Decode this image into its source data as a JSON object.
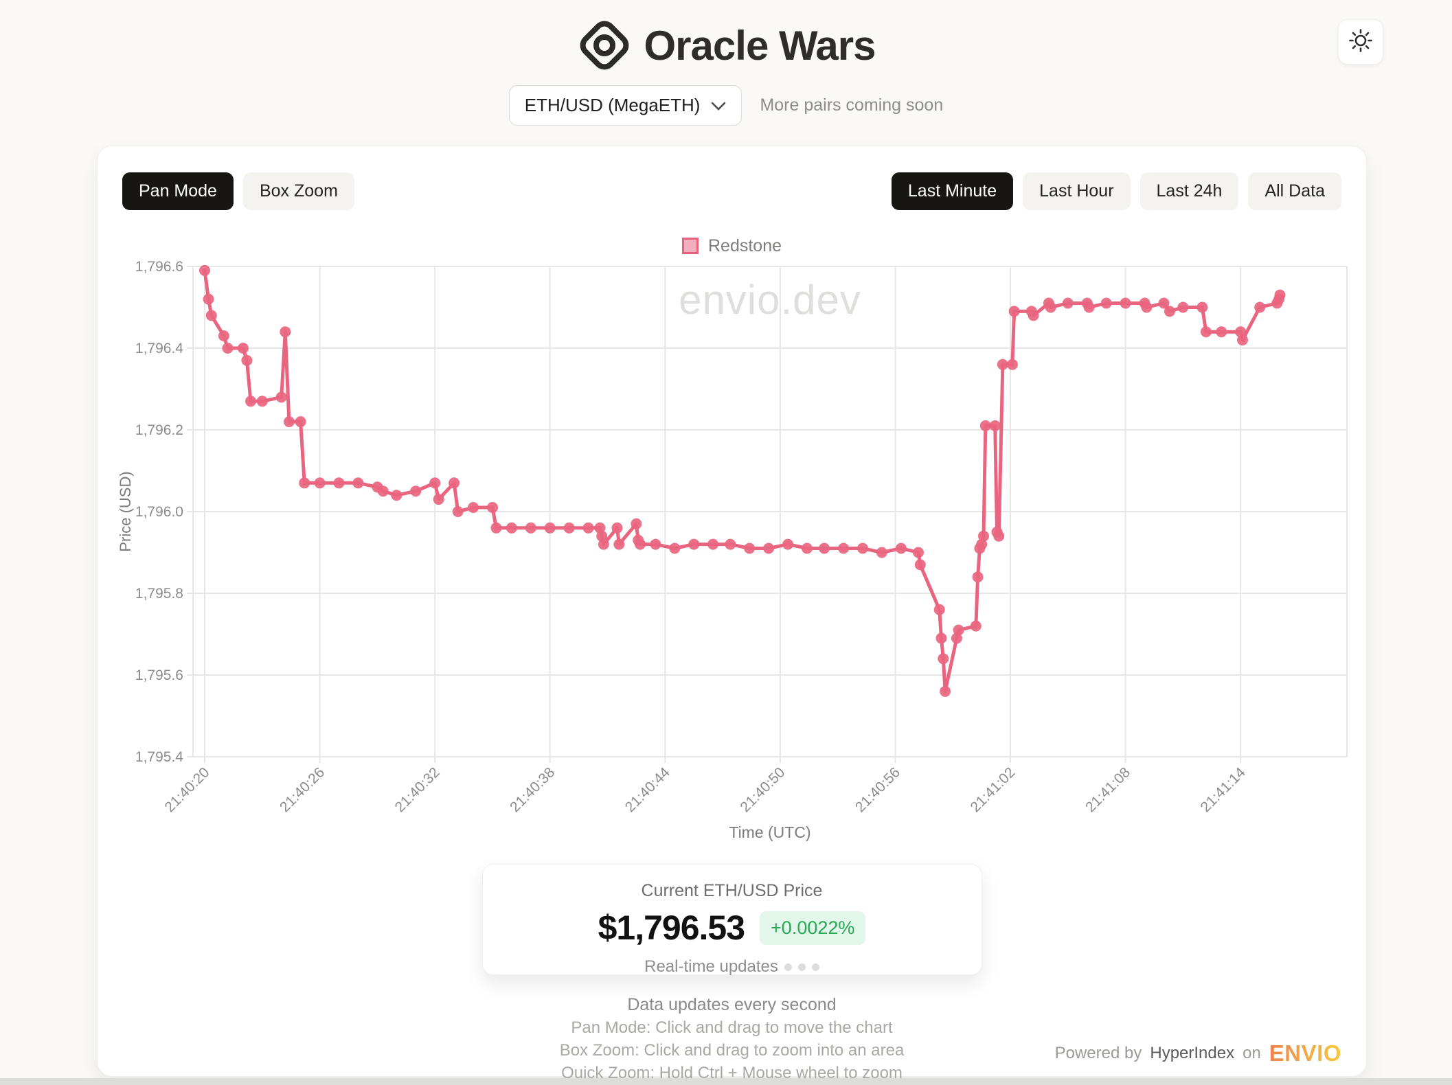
{
  "header": {
    "title": "Oracle Wars",
    "pair_selector_value": "ETH/USD (MegaETH)",
    "pair_note": "More pairs coming soon"
  },
  "toolbar": {
    "modes": [
      {
        "label": "Pan Mode",
        "active": true
      },
      {
        "label": "Box Zoom",
        "active": false
      }
    ],
    "ranges": [
      {
        "label": "Last Minute",
        "active": true
      },
      {
        "label": "Last Hour",
        "active": false
      },
      {
        "label": "Last 24h",
        "active": false
      },
      {
        "label": "All Data",
        "active": false
      }
    ]
  },
  "legend": {
    "series_label": "Redstone"
  },
  "watermark": "envio.dev",
  "chart_data": {
    "type": "line",
    "series_name": "Redstone",
    "xlabel": "Time (UTC)",
    "ylabel": "Price (USD)",
    "ylim": [
      1795.4,
      1796.6
    ],
    "grid": true,
    "legend_position": "top-center",
    "time_base": "seconds after 21:40:00 UTC",
    "x_ticks": {
      "seconds": [
        20,
        26,
        32,
        38,
        44,
        50,
        56,
        62,
        68,
        74
      ],
      "labels": [
        "21:40:20",
        "21:40:26",
        "21:40:32",
        "21:40:38",
        "21:40:44",
        "21:40:50",
        "21:40:56",
        "21:41:02",
        "21:41:08",
        "21:41:14"
      ]
    },
    "y_ticks": {
      "values": [
        1796.6,
        1796.4,
        1796.2,
        1796.0,
        1795.8,
        1795.6,
        1795.4
      ],
      "labels": [
        "1,796.6",
        "1,796.4",
        "1,796.2",
        "1,796.0",
        "1,795.8",
        "1,795.6",
        "1,795.4"
      ]
    },
    "points": [
      [
        20,
        1796.59
      ],
      [
        20.2,
        1796.52
      ],
      [
        20.35,
        1796.48
      ],
      [
        21,
        1796.43
      ],
      [
        21.2,
        1796.4
      ],
      [
        22,
        1796.4
      ],
      [
        22.2,
        1796.37
      ],
      [
        22.4,
        1796.27
      ],
      [
        23,
        1796.27
      ],
      [
        24,
        1796.28
      ],
      [
        24.2,
        1796.44
      ],
      [
        24.4,
        1796.22
      ],
      [
        25,
        1796.22
      ],
      [
        25.2,
        1796.07
      ],
      [
        26,
        1796.07
      ],
      [
        27,
        1796.07
      ],
      [
        28,
        1796.07
      ],
      [
        29,
        1796.06
      ],
      [
        29.3,
        1796.05
      ],
      [
        30,
        1796.04
      ],
      [
        31,
        1796.05
      ],
      [
        32,
        1796.07
      ],
      [
        32.2,
        1796.03
      ],
      [
        33,
        1796.07
      ],
      [
        33.2,
        1796.0
      ],
      [
        34,
        1796.01
      ],
      [
        35,
        1796.01
      ],
      [
        35.2,
        1795.96
      ],
      [
        36,
        1795.96
      ],
      [
        37,
        1795.96
      ],
      [
        38,
        1795.96
      ],
      [
        39,
        1795.96
      ],
      [
        40,
        1795.96
      ],
      [
        40.6,
        1795.96
      ],
      [
        40.7,
        1795.94
      ],
      [
        40.8,
        1795.92
      ],
      [
        41.5,
        1795.96
      ],
      [
        41.6,
        1795.92
      ],
      [
        42.5,
        1795.97
      ],
      [
        42.6,
        1795.93
      ],
      [
        42.7,
        1795.92
      ],
      [
        43.5,
        1795.92
      ],
      [
        44.5,
        1795.91
      ],
      [
        45.5,
        1795.92
      ],
      [
        46.5,
        1795.92
      ],
      [
        47.4,
        1795.92
      ],
      [
        48.4,
        1795.91
      ],
      [
        49.4,
        1795.91
      ],
      [
        50.4,
        1795.92
      ],
      [
        51.4,
        1795.91
      ],
      [
        52.3,
        1795.91
      ],
      [
        53.3,
        1795.91
      ],
      [
        54.3,
        1795.91
      ],
      [
        55.3,
        1795.9
      ],
      [
        56.3,
        1795.91
      ],
      [
        57.2,
        1795.9
      ],
      [
        57.3,
        1795.87
      ],
      [
        58.3,
        1795.76
      ],
      [
        58.4,
        1795.69
      ],
      [
        58.5,
        1795.64
      ],
      [
        58.6,
        1795.56
      ],
      [
        59.2,
        1795.69
      ],
      [
        59.3,
        1795.71
      ],
      [
        60.2,
        1795.72
      ],
      [
        60.3,
        1795.84
      ],
      [
        60.4,
        1795.91
      ],
      [
        60.5,
        1795.92
      ],
      [
        60.6,
        1795.94
      ],
      [
        60.7,
        1796.21
      ],
      [
        61.2,
        1796.21
      ],
      [
        61.3,
        1795.95
      ],
      [
        61.4,
        1795.94
      ],
      [
        61.6,
        1796.36
      ],
      [
        62.1,
        1796.36
      ],
      [
        62.2,
        1796.49
      ],
      [
        63.1,
        1796.49
      ],
      [
        63.2,
        1796.48
      ],
      [
        64,
        1796.51
      ],
      [
        64.1,
        1796.5
      ],
      [
        65,
        1796.51
      ],
      [
        66,
        1796.51
      ],
      [
        66.1,
        1796.5
      ],
      [
        67,
        1796.51
      ],
      [
        68,
        1796.51
      ],
      [
        69,
        1796.51
      ],
      [
        69.1,
        1796.5
      ],
      [
        70,
        1796.51
      ],
      [
        70.3,
        1796.49
      ],
      [
        71,
        1796.5
      ],
      [
        72,
        1796.5
      ],
      [
        72.2,
        1796.44
      ],
      [
        73,
        1796.44
      ],
      [
        74,
        1796.44
      ],
      [
        74.1,
        1796.42
      ],
      [
        75,
        1796.5
      ],
      [
        75.9,
        1796.51
      ],
      [
        76,
        1796.52
      ],
      [
        76.05,
        1796.53
      ]
    ]
  },
  "price_card": {
    "title": "Current ETH/USD Price",
    "value": "$1,796.53",
    "change": "+0.0022%",
    "subtitle": "Real-time updates"
  },
  "hints": {
    "line1": "Data updates every second",
    "line2": "Pan Mode: Click and drag to move the chart",
    "line3": "Box Zoom: Click and drag to zoom into an area",
    "line4": "Quick Zoom: Hold Ctrl + Mouse wheel to zoom"
  },
  "powered": {
    "prefix": "Powered by",
    "link": "HyperIndex",
    "middle": "on",
    "brand": "ENVIO"
  },
  "colors": {
    "series_line": "#e9657f",
    "legend_fill": "#f4afbe",
    "grid": "#e7e6e4",
    "axis_text": "#8c8b89",
    "active_button_bg": "#181613",
    "badge_bg": "#e2f6e9",
    "badge_text": "#28a757",
    "envio_gradient_start": "#ef8450",
    "envio_gradient_end": "#f6c93f"
  }
}
